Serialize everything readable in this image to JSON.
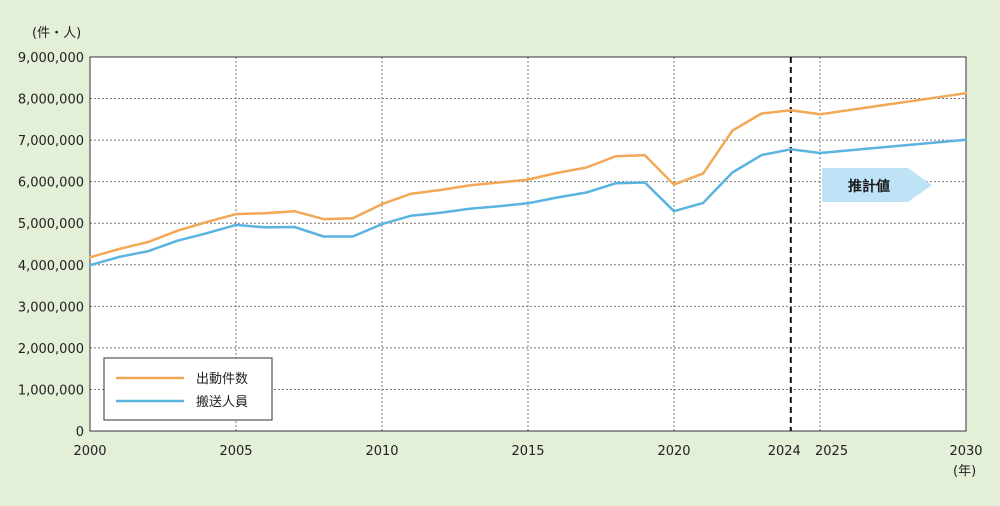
{
  "chart_data": {
    "type": "line",
    "y_unit_label": "(件・人)",
    "x_unit_label": "(年)",
    "xlim": [
      2000,
      2030
    ],
    "ylim": [
      0,
      9000000
    ],
    "x_ticks": [
      2000,
      2005,
      2010,
      2015,
      2020,
      2024,
      2025,
      2030
    ],
    "x_tick_labels": [
      "2000",
      "2005",
      "2010",
      "2015",
      "2020",
      "2024",
      "2025",
      "2030"
    ],
    "y_ticks": [
      0,
      1000000,
      2000000,
      3000000,
      4000000,
      5000000,
      6000000,
      7000000,
      8000000,
      9000000
    ],
    "y_tick_labels": [
      "0",
      "1,000,000",
      "2,000,000",
      "3,000,000",
      "4,000,000",
      "5,000,000",
      "6,000,000",
      "7,000,000",
      "8,000,000",
      "9,000,000"
    ],
    "grid": true,
    "legend_position": "bottom-left",
    "forecast_divider_x": 2024,
    "forecast_label": "推計値",
    "colors": {
      "dispatches": "#f2a856",
      "transported": "#5bb3e0",
      "forecast_arrow": "#bfe3f6",
      "background": "#e3efd6"
    },
    "series": [
      {
        "name": "出動件数",
        "x": [
          2000,
          2001,
          2002,
          2003,
          2004,
          2005,
          2006,
          2007,
          2008,
          2009,
          2010,
          2011,
          2012,
          2013,
          2014,
          2015,
          2016,
          2017,
          2018,
          2019,
          2020,
          2021,
          2022,
          2023,
          2024,
          2025,
          2030
        ],
        "values": [
          4180000,
          4380000,
          4550000,
          4820000,
          5030000,
          5220000,
          5240000,
          5290000,
          5100000,
          5120000,
          5460000,
          5710000,
          5800000,
          5910000,
          5980000,
          6050000,
          6210000,
          6340000,
          6610000,
          6640000,
          5930000,
          6200000,
          7230000,
          7640000,
          7720000,
          7620000,
          8130000
        ]
      },
      {
        "name": "搬送人員",
        "x": [
          2000,
          2001,
          2002,
          2003,
          2004,
          2005,
          2006,
          2007,
          2008,
          2009,
          2010,
          2011,
          2012,
          2013,
          2014,
          2015,
          2016,
          2017,
          2018,
          2019,
          2020,
          2021,
          2022,
          2023,
          2024,
          2025,
          2030
        ],
        "values": [
          3990000,
          4190000,
          4330000,
          4580000,
          4760000,
          4960000,
          4900000,
          4910000,
          4680000,
          4680000,
          4980000,
          5180000,
          5250000,
          5350000,
          5410000,
          5480000,
          5620000,
          5740000,
          5960000,
          5980000,
          5290000,
          5490000,
          6220000,
          6640000,
          6780000,
          6690000,
          7010000
        ]
      }
    ]
  }
}
